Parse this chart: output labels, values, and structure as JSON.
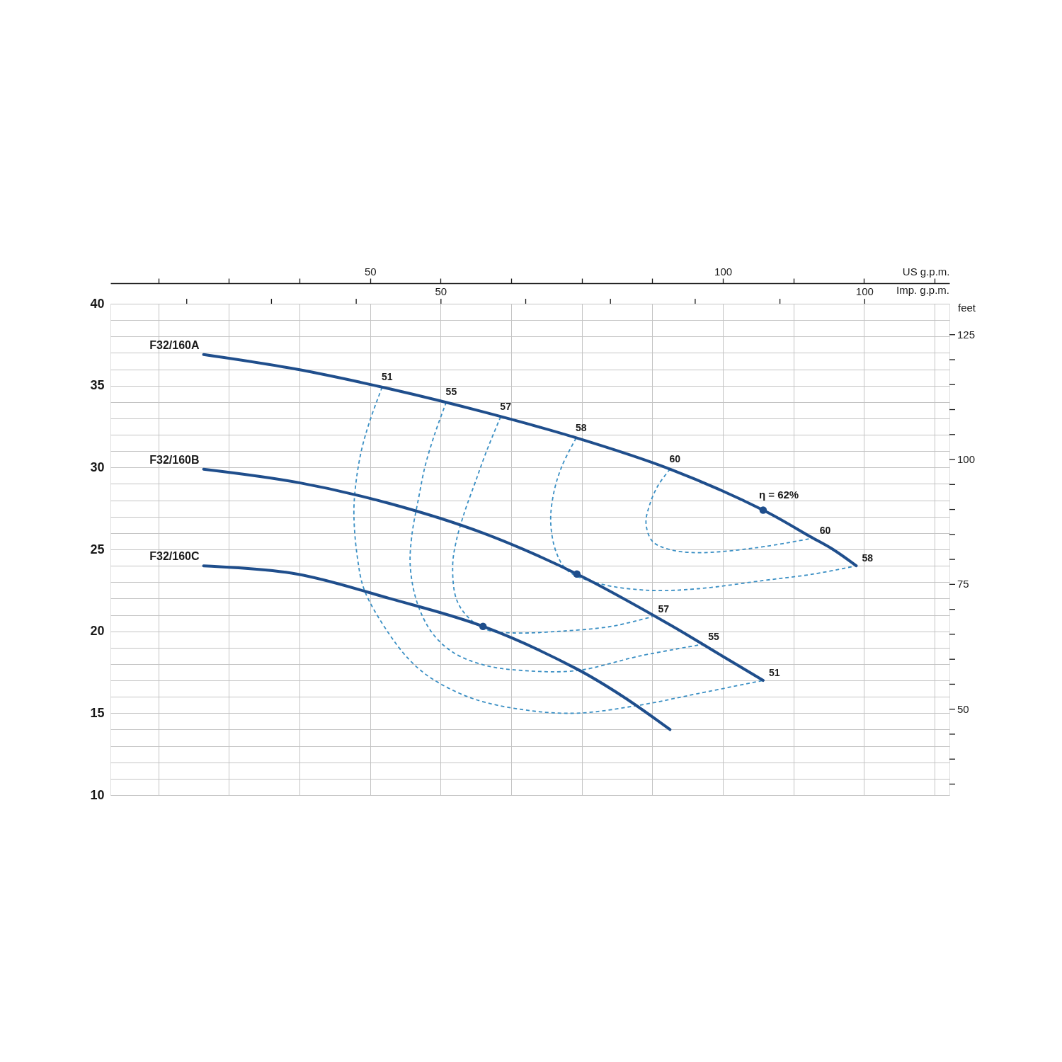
{
  "chart_data": {
    "type": "line",
    "xlabel": "US g.p.m.",
    "xlim": [
      13.2,
      132.1
    ],
    "xticks": [
      {
        "value": 20,
        "label": null
      },
      {
        "value": 30,
        "label": null
      },
      {
        "value": 40,
        "label": null
      },
      50,
      {
        "value": 60,
        "label": null
      },
      {
        "value": 70,
        "label": null
      },
      {
        "value": 80,
        "label": null
      },
      {
        "value": 90,
        "label": null
      },
      100,
      {
        "value": 110,
        "label": null
      },
      {
        "value": 120,
        "label": null
      },
      {
        "value": 130,
        "label": null
      }
    ],
    "ylim": [
      10,
      40
    ],
    "yticks": [
      10,
      {
        "value": 11,
        "label": null
      },
      {
        "value": 12,
        "label": null
      },
      {
        "value": 13,
        "label": null
      },
      {
        "value": 14,
        "label": null
      },
      15,
      {
        "value": 16,
        "label": null
      },
      {
        "value": 17,
        "label": null
      },
      {
        "value": 18,
        "label": null
      },
      {
        "value": 19,
        "label": null
      },
      20,
      {
        "value": 21,
        "label": null
      },
      {
        "value": 22,
        "label": null
      },
      {
        "value": 23,
        "label": null
      },
      {
        "value": 24,
        "label": null
      },
      25,
      {
        "value": 26,
        "label": null
      },
      {
        "value": 27,
        "label": null
      },
      {
        "value": 28,
        "label": null
      },
      {
        "value": 29,
        "label": null
      },
      30,
      {
        "value": 31,
        "label": null
      },
      {
        "value": 32,
        "label": null
      },
      {
        "value": 33,
        "label": null
      },
      {
        "value": 34,
        "label": null
      },
      35,
      {
        "value": 36,
        "label": null
      },
      {
        "value": 37,
        "label": null
      },
      {
        "value": 38,
        "label": null
      },
      {
        "value": 39,
        "label": null
      },
      40
    ],
    "x2label": "Imp. g.p.m.",
    "x2lim": [
      11.0,
      110.0
    ],
    "x2ticks": [
      {
        "value": 20,
        "label": null
      },
      {
        "value": 30,
        "label": null
      },
      {
        "value": 40,
        "label": null
      },
      50,
      {
        "value": 60,
        "label": null
      },
      {
        "value": 70,
        "label": null
      },
      {
        "value": 80,
        "label": null
      },
      {
        "value": 90,
        "label": null
      },
      100
    ],
    "y2label": "feet",
    "y2lim": [
      32.8,
      131.2
    ],
    "y2ticks": [
      {
        "value": 35,
        "label": null
      },
      {
        "value": 40,
        "label": null
      },
      {
        "value": 45,
        "label": null
      },
      50,
      {
        "value": 55,
        "label": null
      },
      {
        "value": 60,
        "label": null
      },
      {
        "value": 65,
        "label": null
      },
      {
        "value": 70,
        "label": null
      },
      75,
      {
        "value": 80,
        "label": null
      },
      {
        "value": 85,
        "label": null
      },
      {
        "value": 90,
        "label": null
      },
      {
        "value": 95,
        "label": null
      },
      100,
      {
        "value": 105,
        "label": null
      },
      {
        "value": 110,
        "label": null
      },
      {
        "value": 115,
        "label": null
      },
      {
        "value": 120,
        "label": null
      },
      125
    ],
    "grid": true,
    "annotations": [
      {
        "text": "η = 62%",
        "x": 105.7,
        "y": 27.4
      }
    ],
    "series": [
      {
        "name": "51",
        "line_style": "dashed",
        "color": "#3a8fc4",
        "x": [
          51.7,
          50.0,
          48.8,
          48.0,
          47.7,
          48.2,
          49.2,
          52.6,
          55.7,
          58.8,
          64.5,
          71.9,
          79.3,
          88.3,
          96.5,
          105.7
        ],
        "values": [
          34.9,
          32.9,
          31.1,
          29.1,
          27.2,
          24.5,
          22.5,
          19.9,
          18.2,
          17.1,
          15.9,
          15.2,
          15.0,
          15.5,
          16.2,
          17.0
        ]
      },
      {
        "name": "55",
        "line_style": "dashed",
        "color": "#3a8fc4",
        "x": [
          60.8,
          59.2,
          57.8,
          56.9,
          55.9,
          55.7,
          56.7,
          58.8,
          61.8,
          66.5,
          71.9,
          79.3,
          88.3,
          97.1
        ],
        "values": [
          34.0,
          32.1,
          30.1,
          28.2,
          25.8,
          23.9,
          21.7,
          19.9,
          18.7,
          17.9,
          17.6,
          17.6,
          18.5,
          19.2
        ]
      },
      {
        "name": "57",
        "line_style": "dashed",
        "color": "#3a8fc4",
        "x": [
          68.5,
          66.5,
          64.9,
          63.4,
          62.2,
          61.7,
          62.2,
          63.8,
          66.5,
          70.3,
          76.8,
          84.2,
          90.0
        ],
        "values": [
          33.1,
          31.0,
          29.1,
          27.3,
          25.5,
          24.0,
          22.0,
          20.9,
          20.1,
          19.9,
          20.0,
          20.3,
          20.9
        ]
      },
      {
        "name": "58",
        "line_style": "dashed",
        "color": "#3a8fc4",
        "x": [
          79.2,
          77.2,
          76.0,
          75.6,
          76.4,
          78.0,
          82.6,
          89.6,
          96.5,
          105.7,
          112.9,
          118.9
        ],
        "values": [
          31.8,
          30.1,
          28.4,
          26.6,
          24.8,
          23.7,
          22.9,
          22.5,
          22.6,
          23.1,
          23.5,
          24.0
        ]
      },
      {
        "name": "60",
        "line_style": "dashed",
        "color": "#3a8fc4",
        "x": [
          92.5,
          90.8,
          89.6,
          89.1,
          90.0,
          92.4,
          96.5,
          104.7,
          112.9
        ],
        "values": [
          29.9,
          28.9,
          27.7,
          26.6,
          25.5,
          25.0,
          24.8,
          25.1,
          25.7
        ]
      },
      {
        "name": "F32/160A",
        "color": "#1f4e8c",
        "x": [
          26.4,
          39.6,
          52.8,
          66.0,
          79.3,
          92.5,
          105.7,
          112.3,
          115.6,
          118.9
        ],
        "values": [
          36.9,
          36.0,
          34.8,
          33.4,
          31.8,
          29.9,
          27.4,
          25.8,
          25.0,
          24.0
        ]
      },
      {
        "name": "F32/160B",
        "color": "#1f4e8c",
        "x": [
          26.4,
          39.6,
          52.8,
          66.0,
          79.3,
          92.5,
          99.1,
          105.7
        ],
        "values": [
          29.9,
          29.1,
          27.8,
          26.0,
          23.5,
          20.4,
          18.7,
          17.0
        ]
      },
      {
        "name": "F32/160C",
        "color": "#1f4e8c",
        "x": [
          26.4,
          39.6,
          52.8,
          66.0,
          79.3,
          85.9,
          92.5
        ],
        "values": [
          24.0,
          23.5,
          22.0,
          20.3,
          17.7,
          16.0,
          14.0
        ]
      },
      {
        "type": "scatter",
        "marker": "circle",
        "color": "#1f4e8c",
        "x": [
          105.7,
          79.3,
          66.0
        ],
        "values": [
          27.4,
          23.5,
          20.3
        ]
      }
    ]
  }
}
